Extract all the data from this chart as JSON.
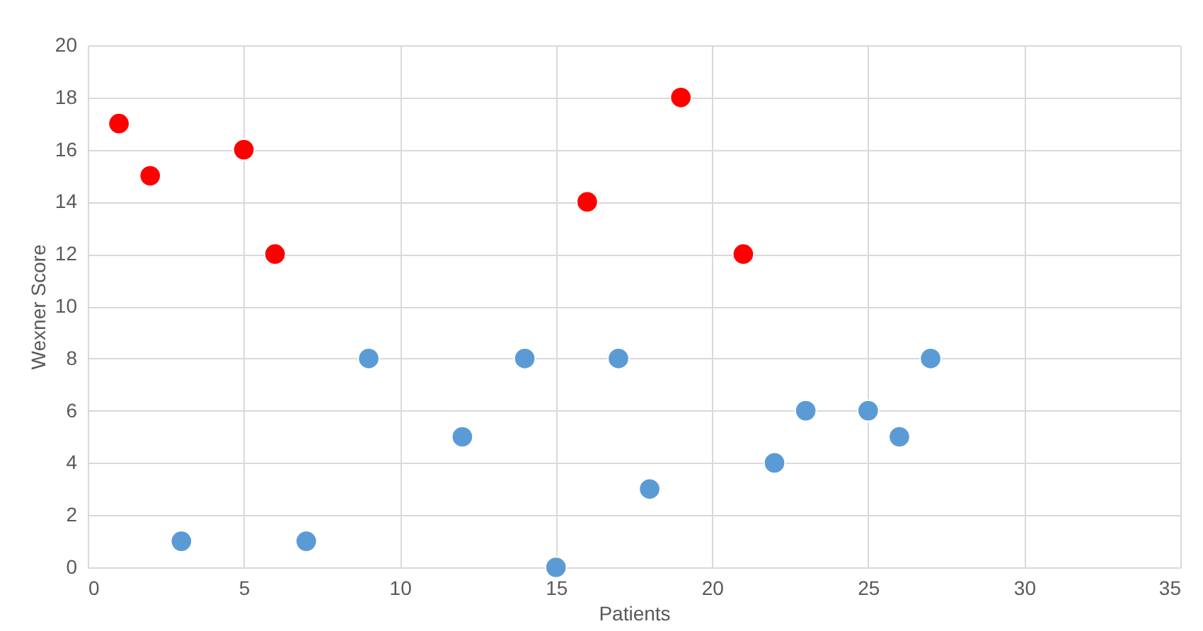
{
  "chart_data": {
    "type": "scatter",
    "xlabel": "Patients",
    "ylabel": "Wexner Score",
    "xlim": [
      0,
      35
    ],
    "xticks": [
      0,
      5,
      10,
      15,
      20,
      25,
      30,
      35
    ],
    "ylim": [
      0,
      20
    ],
    "yticks": [
      0,
      2,
      4,
      6,
      8,
      10,
      12,
      14,
      16,
      18,
      20
    ],
    "grid": true,
    "legend": false,
    "marker": "circle",
    "series": [
      {
        "color": "#5b9bd5",
        "x": [
          3,
          7,
          9,
          12,
          14,
          15,
          17,
          18,
          22,
          23,
          25,
          26,
          27
        ],
        "values": [
          1,
          1,
          8,
          5,
          8,
          0,
          8,
          3,
          4,
          6,
          6,
          5,
          8
        ]
      },
      {
        "color": "#ff0000",
        "x": [
          1,
          2,
          5,
          6,
          16,
          19,
          21
        ],
        "values": [
          17,
          15,
          16,
          12,
          14,
          18,
          12
        ]
      }
    ]
  }
}
